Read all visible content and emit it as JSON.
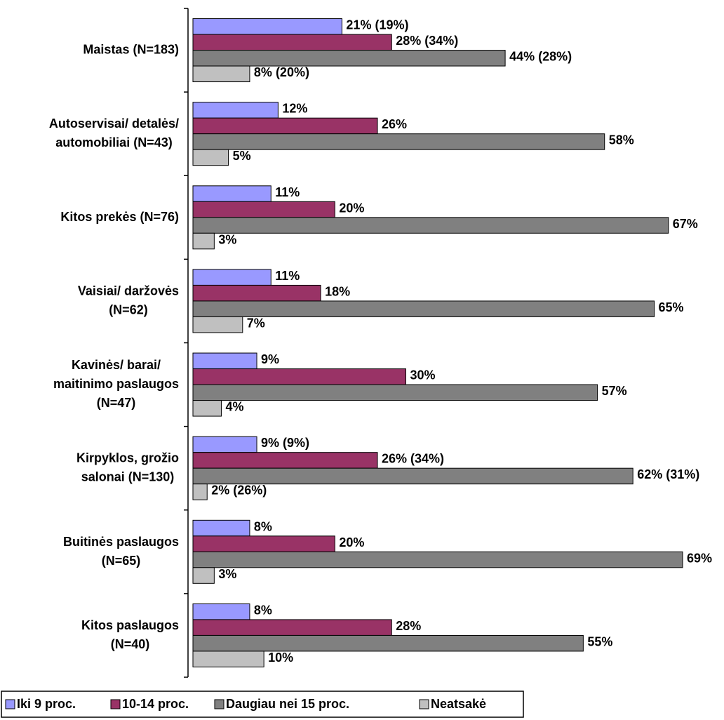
{
  "chart_data": {
    "type": "hbar",
    "categories": [
      "Maistas (N=183)",
      "Autoservisai/ detalės/\nautomobiliai (N=43)",
      "Kitos prekės (N=76)",
      "Vaisiai/ daržovės\n(N=62)",
      "Kavinės/ barai/\nmaitinimo paslaugos\n(N=47)",
      "Kirpyklos, grožio\nsalonai (N=130)",
      "Buitinės paslaugos\n(N=65)",
      "Kitos paslaugos\n(N=40)"
    ],
    "series": [
      {
        "name": "Iki 9 proc.",
        "color": "#9999ff",
        "values": [
          21,
          12,
          11,
          11,
          9,
          9,
          8,
          8
        ],
        "value_labels": [
          "21% (19%)",
          "12%",
          "11%",
          "11%",
          "9%",
          "9% (9%)",
          "8%",
          "8%"
        ]
      },
      {
        "name": "10-14 proc.",
        "color": "#993366",
        "values": [
          28,
          26,
          20,
          18,
          30,
          26,
          20,
          28
        ],
        "value_labels": [
          "28% (34%)",
          "26%",
          "20%",
          "18%",
          "30%",
          "26% (34%)",
          "20%",
          "28%"
        ]
      },
      {
        "name": "Daugiau nei 15 proc.",
        "color": "#808080",
        "values": [
          44,
          58,
          67,
          65,
          57,
          62,
          69,
          55
        ],
        "value_labels": [
          "44% (28%)",
          "58%",
          "67%",
          "65%",
          "57%",
          "62% (31%)",
          "69%",
          "55%"
        ]
      },
      {
        "name": "Neatsakė",
        "color": "#c0c0c0",
        "values": [
          8,
          5,
          3,
          7,
          4,
          2,
          3,
          10
        ],
        "value_labels": [
          "8% (20%)",
          "5%",
          "3%",
          "7%",
          "4%",
          "2% (26%)",
          "3%",
          "10%"
        ]
      }
    ]
  }
}
